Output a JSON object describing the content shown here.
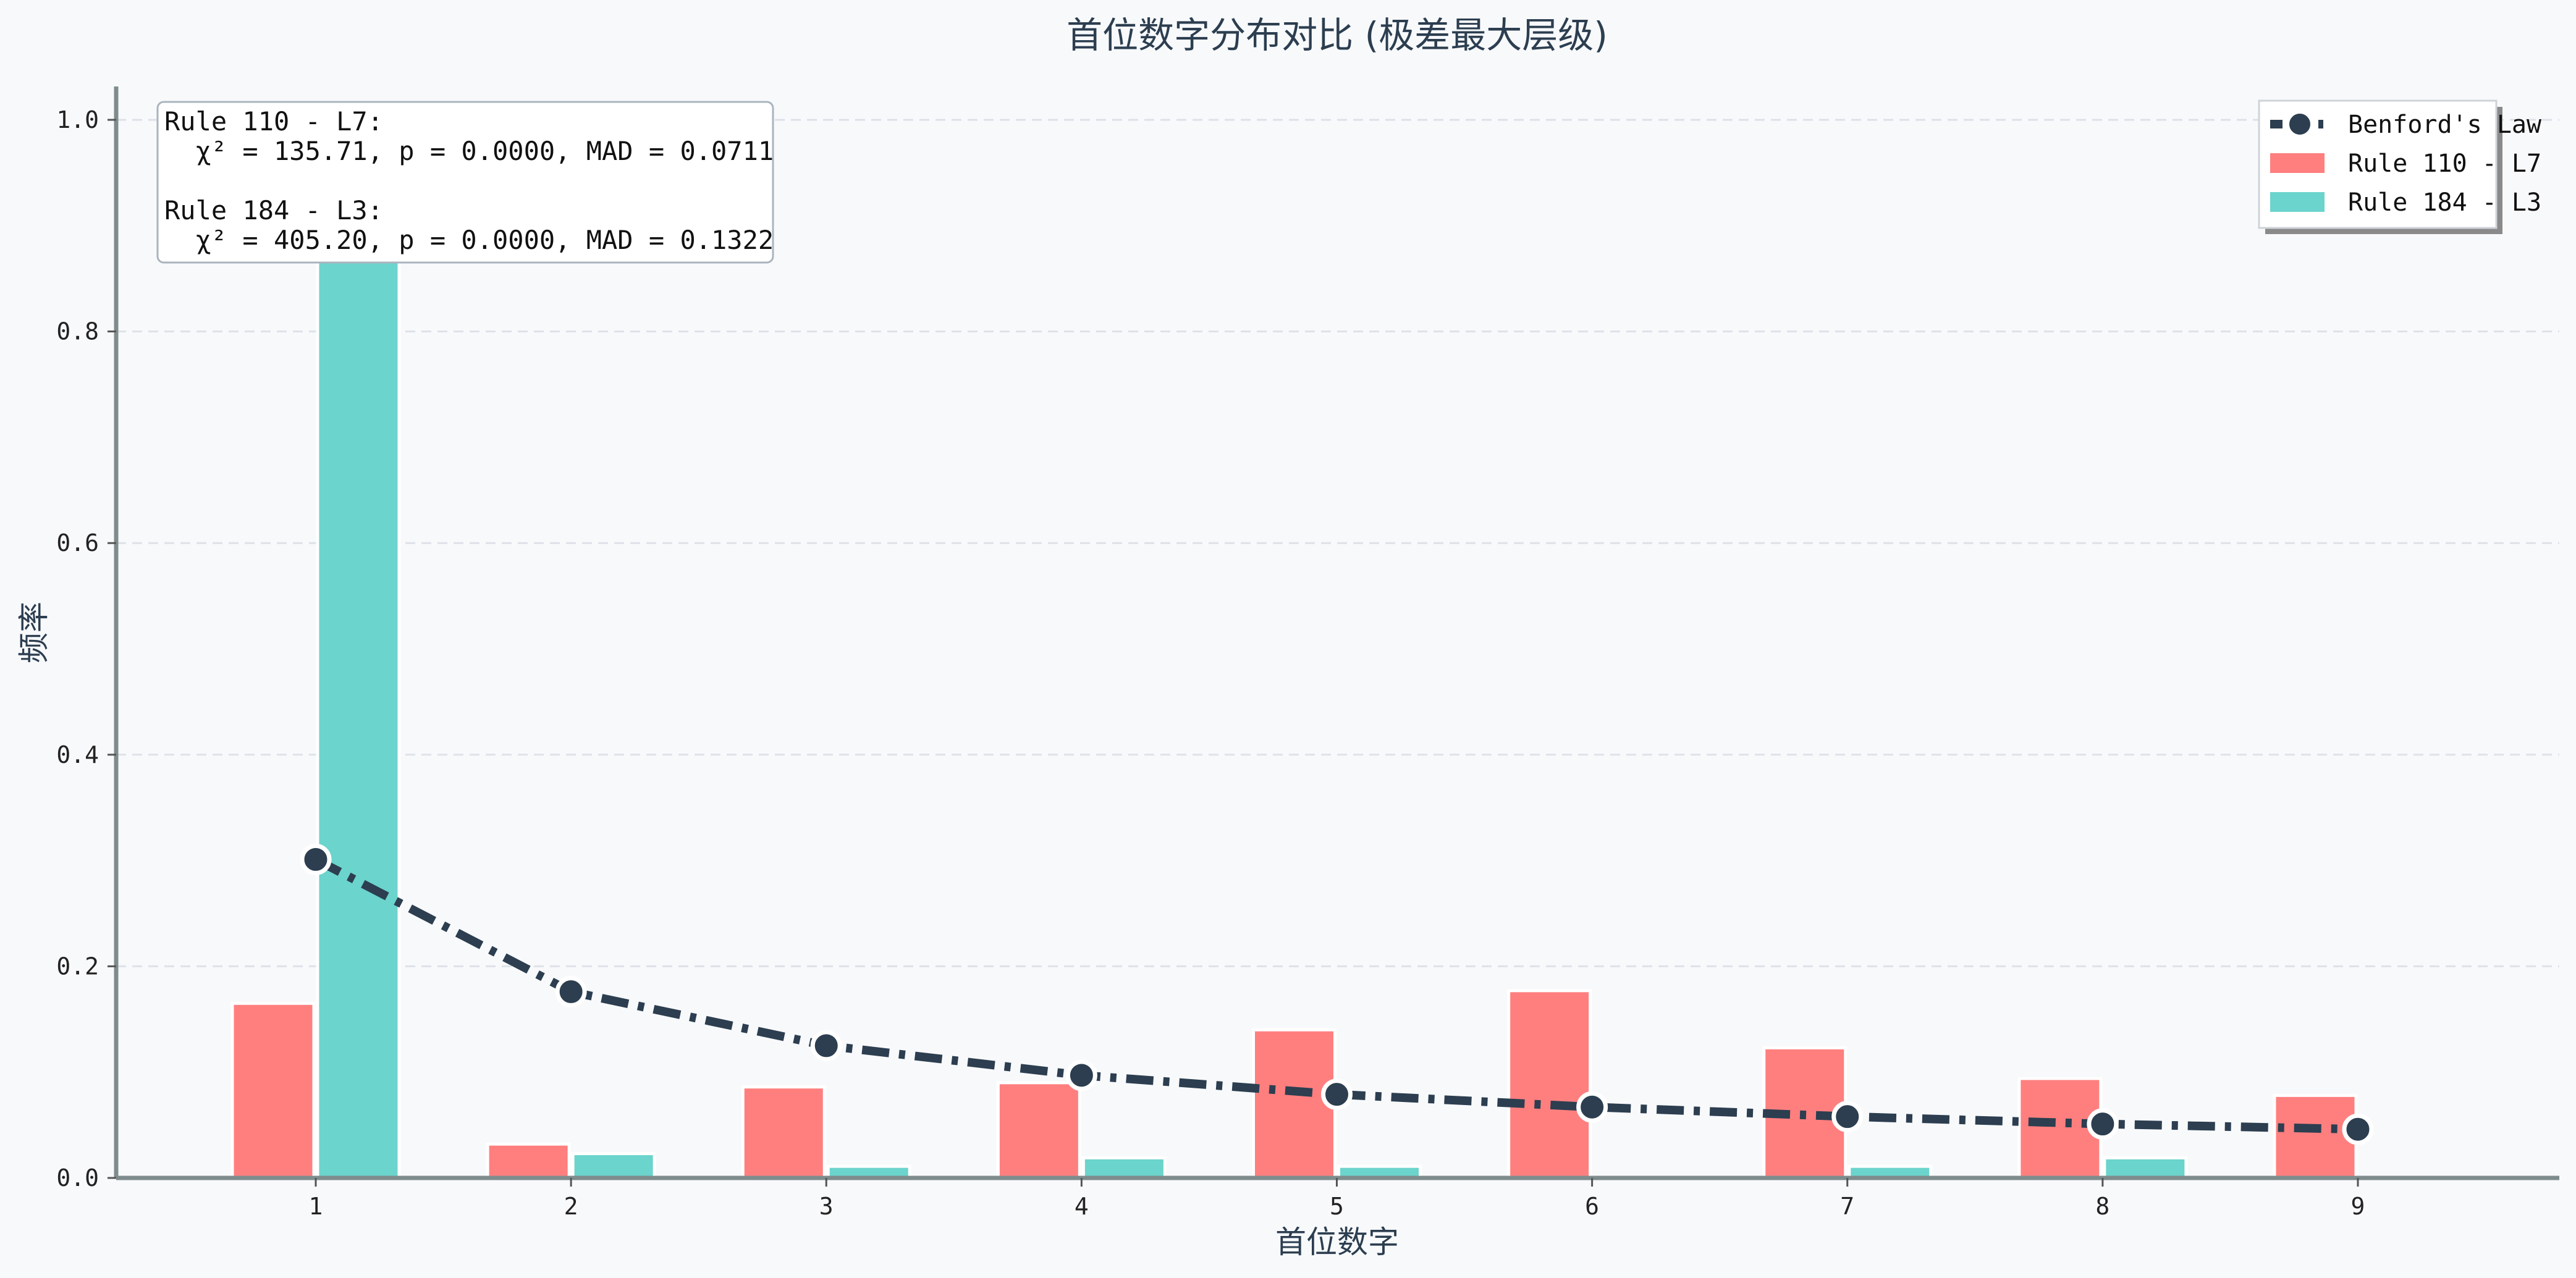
{
  "chart_data": {
    "type": "bar",
    "title": "首位数字分布对比 (极差最大层级)",
    "xlabel": "首位数字",
    "ylabel": "频率",
    "categories": [
      "1",
      "2",
      "3",
      "4",
      "5",
      "6",
      "7",
      "8",
      "9"
    ],
    "ylim": [
      0,
      1.0
    ],
    "yticks": [
      "0.0",
      "0.2",
      "0.4",
      "0.6",
      "0.8",
      "1.0"
    ],
    "grid": "horizontal dashed",
    "legend_position": "top-right",
    "series": [
      {
        "name": "Benford's Law",
        "kind": "line",
        "color": "#2c3e50",
        "values": [
          0.301,
          0.176,
          0.125,
          0.097,
          0.079,
          0.067,
          0.058,
          0.051,
          0.046
        ]
      },
      {
        "name": "Rule 110 - L7",
        "kind": "bar",
        "color": "#ff7f7f",
        "values": [
          0.165,
          0.032,
          0.086,
          0.09,
          0.14,
          0.177,
          0.123,
          0.094,
          0.078
        ]
      },
      {
        "name": "Rule 184 - L3",
        "kind": "bar",
        "color": "#6bd4cc",
        "values": [
          0.895,
          0.023,
          0.011,
          0.019,
          0.011,
          0.0,
          0.011,
          0.019,
          0.0
        ]
      }
    ],
    "annotations": [
      "Rule 110 - L7:",
      "  χ² = 135.71, p = 0.0000, MAD = 0.0711",
      "",
      "Rule 184 - L3:",
      "  χ² = 405.20, p = 0.0000, MAD = 0.1322"
    ]
  }
}
